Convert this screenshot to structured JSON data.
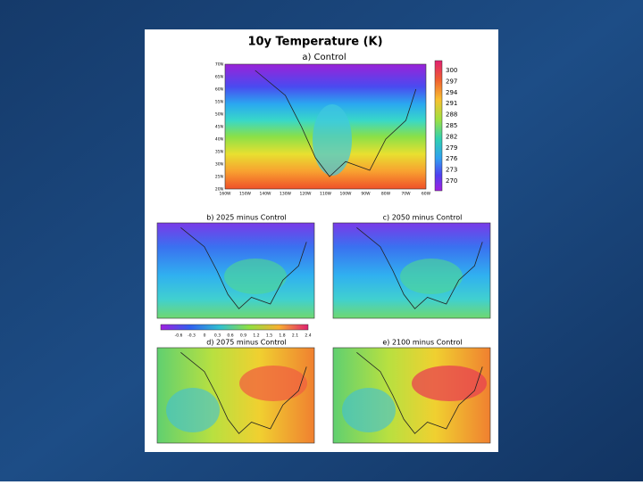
{
  "header": {
    "title": "10y Temperature (K)"
  },
  "main_map": {
    "label": "a) Control",
    "lat_labels": [
      "70N",
      "65N",
      "60N",
      "55N",
      "50N",
      "45N",
      "40N",
      "35N",
      "30N",
      "25N",
      "20N"
    ],
    "lon_labels": [
      "160W",
      "150W",
      "140W",
      "130W",
      "120W",
      "110W",
      "100W",
      "90W",
      "80W",
      "70W",
      "60W"
    ],
    "colorbar": [
      "300",
      "297",
      "294",
      "291",
      "288",
      "285",
      "282",
      "279",
      "276",
      "273",
      "270"
    ]
  },
  "difference_maps": [
    {
      "label": "b) 2025 minus Control"
    },
    {
      "label": "c) 2050 minus Control"
    },
    {
      "label": "d) 2075 minus Control"
    },
    {
      "label": "e) 2100 minus Control"
    }
  ],
  "difference_colorbar": [
    "-0.6",
    "-0.3",
    "0",
    "0.3",
    "0.6",
    "0.9",
    "1.2",
    "1.5",
    "1.8",
    "2.1",
    "2.4"
  ]
}
